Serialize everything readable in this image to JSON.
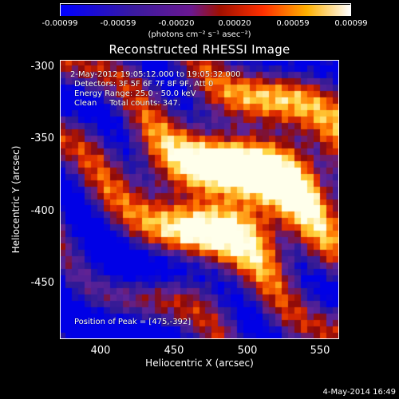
{
  "colorbar": {
    "ticks": [
      "-0.00099",
      "-0.00059",
      "-0.00020",
      "0.00020",
      "0.00059",
      "0.00099"
    ],
    "tick_values": [
      -0.00099,
      -0.00059,
      -0.0002,
      0.0002,
      0.00059,
      0.00099
    ],
    "units": "(photons cm⁻² s⁻¹ asec⁻²)"
  },
  "chart_data": {
    "type": "heatmap",
    "title": "Reconstructed RHESSI Image",
    "xlabel": "Heliocentric X (arcsec)",
    "ylabel": "Heliocentric Y (arcsec)",
    "xlim": [
      370,
      565
    ],
    "ylim": [
      -488,
      -293
    ],
    "xticks": [
      400,
      450,
      500,
      550
    ],
    "yticks": [
      -300,
      -350,
      -400,
      -450
    ],
    "colormap": "blue-purple-red-orange-yellow-white",
    "peak": [
      475,
      -392
    ]
  },
  "info": {
    "time": "2-May-2012 19:05:12.000 to 19:05:32.000",
    "detectors": "Detectors: 3F 5F 6F 7F 8F 9F, Att 0",
    "energy": "Energy Range: 25.0 - 50.0 keV",
    "clean": "Clean     Total counts: 347.",
    "peak": "Position of Peak = [475,-392]"
  },
  "footer": "4-May-2014 16:49",
  "colors": {
    "background": "#000000",
    "foreground": "#ffffff"
  }
}
